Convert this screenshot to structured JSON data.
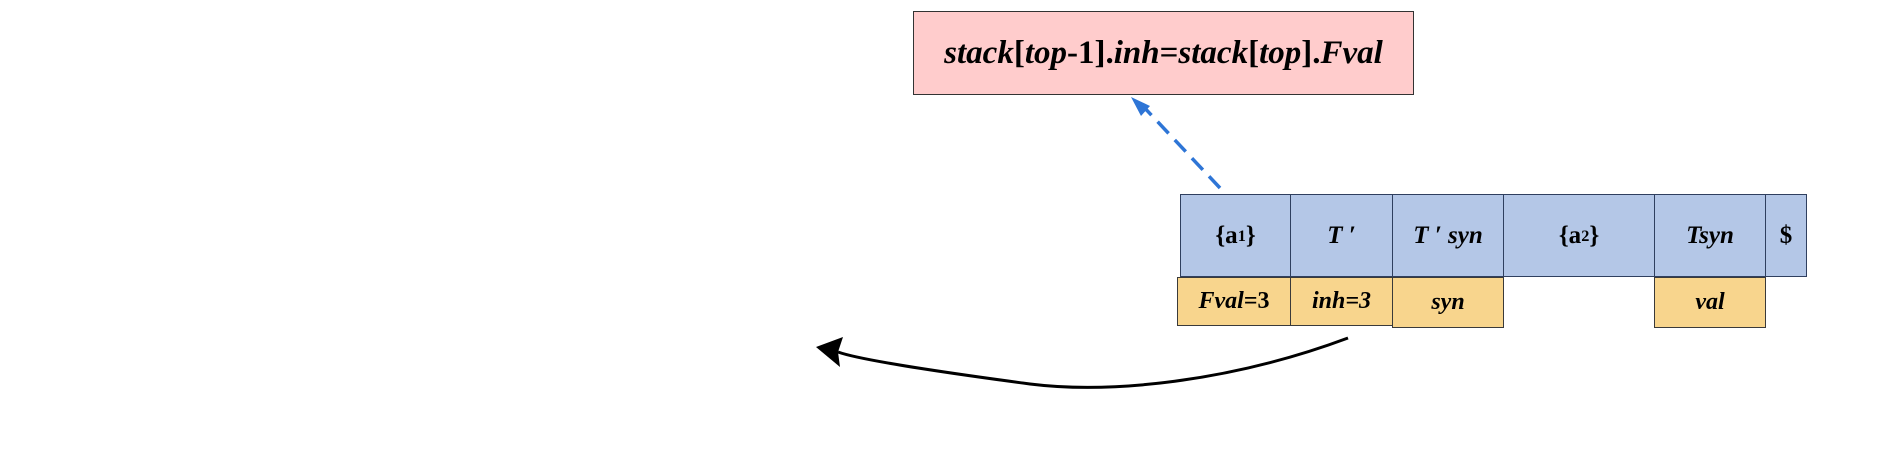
{
  "action": {
    "s1": "stack",
    "s2": "[",
    "s3": "top",
    "s4": "-1].",
    "s5": "inh",
    "s6": "=",
    "s7": "stack",
    "s8": "[",
    "s9": "top",
    "s10": "].",
    "s11": "Fval"
  },
  "stack": {
    "cell1": {
      "pre": "{a",
      "sub": "1",
      "post": "}"
    },
    "cell2": {
      "text": "T ′"
    },
    "cell3": {
      "text": "T ′ syn"
    },
    "cell4": {
      "pre": "{a",
      "sub": "2",
      "post": "}"
    },
    "cell5": {
      "text": "Tsyn"
    },
    "cell6": {
      "text": "$"
    }
  },
  "attrs": {
    "a1": {
      "name": "Fval",
      "rest": "=3"
    },
    "a2": {
      "text": "inh=3"
    },
    "a3": {
      "text": "syn"
    },
    "a5": {
      "text": "val"
    }
  },
  "colors": {
    "action_fill": "#ffcccc",
    "stack_fill": "#b4c7e7",
    "attr_fill": "#f8d58d",
    "dashed_arrow": "#2e75d6",
    "curved_arrow": "#000000"
  }
}
